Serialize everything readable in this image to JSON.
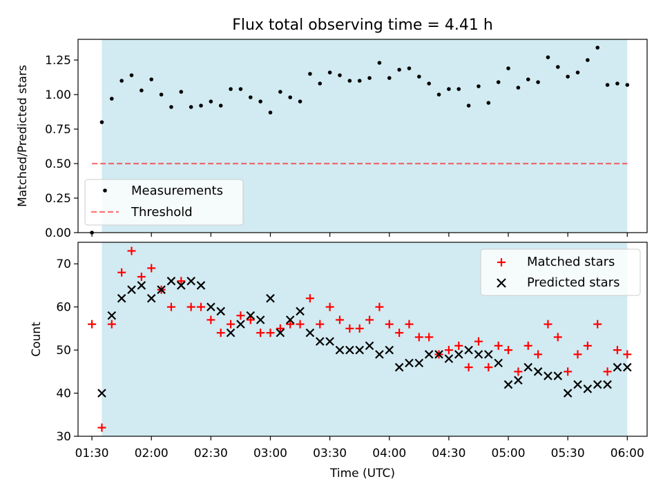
{
  "title": "Flux total observing time = 4.41 h",
  "colors": {
    "shade": "#add8e6",
    "threshold": "#ff0000",
    "matched": "#ff0000",
    "predicted": "#000000",
    "measure": "#000000"
  },
  "chart_data": [
    {
      "type": "scatter",
      "panel": "top",
      "title": "Flux total observing time = 4.41 h",
      "xlabel": "",
      "ylabel": "Matched/Predicted stars",
      "xlim_minutes": [
        83,
        370
      ],
      "ylim": [
        0,
        1.4
      ],
      "yticks": [
        0,
        0.25,
        0.5,
        0.75,
        1.0,
        1.25
      ],
      "ytick_labels": [
        "0.00",
        "0.25",
        "0.50",
        "0.75",
        "1.00",
        "1.25"
      ],
      "shaded_span_minutes": [
        95,
        360
      ],
      "threshold_value": 0.5,
      "threshold_span_minutes": [
        90,
        360
      ],
      "legend": {
        "position": "lower-left",
        "entries": [
          "Measurements",
          "Threshold"
        ]
      },
      "series": [
        {
          "name": "Measurements",
          "x_minutes": [
            90,
            95,
            100,
            105,
            110,
            115,
            120,
            125,
            130,
            135,
            140,
            145,
            150,
            155,
            160,
            165,
            170,
            175,
            180,
            185,
            190,
            195,
            200,
            205,
            210,
            215,
            220,
            225,
            230,
            235,
            240,
            245,
            250,
            255,
            260,
            265,
            270,
            275,
            280,
            285,
            290,
            295,
            300,
            305,
            310,
            315,
            320,
            325,
            330,
            335,
            340,
            345,
            350,
            355,
            360
          ],
          "values": [
            0.0,
            0.8,
            0.97,
            1.1,
            1.14,
            1.03,
            1.11,
            1.0,
            0.91,
            1.02,
            0.91,
            0.92,
            0.95,
            0.92,
            1.04,
            1.04,
            0.98,
            0.95,
            0.87,
            1.02,
            0.98,
            0.95,
            1.15,
            1.08,
            1.16,
            1.14,
            1.1,
            1.1,
            1.12,
            1.23,
            1.12,
            1.18,
            1.19,
            1.13,
            1.08,
            1.0,
            1.04,
            1.04,
            0.92,
            1.06,
            0.94,
            1.09,
            1.19,
            1.05,
            1.11,
            1.09,
            1.27,
            1.2,
            1.13,
            1.16,
            1.25,
            1.34,
            1.07,
            1.08,
            1.07
          ]
        }
      ]
    },
    {
      "type": "scatter",
      "panel": "bottom",
      "xlabel": "Time (UTC)",
      "ylabel": "Count",
      "xlim_minutes": [
        83,
        370
      ],
      "ylim": [
        30,
        75
      ],
      "yticks": [
        30,
        40,
        50,
        60,
        70
      ],
      "ytick_labels": [
        "30",
        "40",
        "50",
        "60",
        "70"
      ],
      "xticks_minutes": [
        90,
        120,
        150,
        180,
        210,
        240,
        270,
        300,
        330,
        360
      ],
      "xtick_labels": [
        "01:30",
        "02:00",
        "02:30",
        "03:00",
        "03:30",
        "04:00",
        "04:30",
        "05:00",
        "05:30",
        "06:00"
      ],
      "shaded_span_minutes": [
        95,
        360
      ],
      "legend": {
        "position": "top-right",
        "entries": [
          "Matched stars",
          "Predicted stars"
        ]
      },
      "series": [
        {
          "name": "Matched stars",
          "marker": "+",
          "x_minutes": [
            90,
            95,
            100,
            105,
            110,
            115,
            120,
            125,
            130,
            135,
            140,
            145,
            150,
            155,
            160,
            165,
            170,
            175,
            180,
            185,
            190,
            195,
            200,
            205,
            210,
            215,
            220,
            225,
            230,
            235,
            240,
            245,
            250,
            255,
            260,
            265,
            270,
            275,
            280,
            285,
            290,
            295,
            300,
            305,
            310,
            315,
            320,
            325,
            330,
            335,
            340,
            345,
            350,
            355,
            360
          ],
          "values": [
            56,
            32,
            56,
            68,
            73,
            67,
            69,
            64,
            60,
            66,
            60,
            60,
            57,
            54,
            56,
            58,
            57,
            54,
            54,
            55,
            56,
            56,
            62,
            56,
            60,
            57,
            55,
            55,
            57,
            60,
            56,
            54,
            56,
            53,
            53,
            49,
            50,
            51,
            46,
            52,
            46,
            51,
            50,
            45,
            51,
            49,
            56,
            53,
            45,
            49,
            51,
            56,
            45,
            50,
            49
          ]
        },
        {
          "name": "Predicted stars",
          "marker": "x",
          "x_minutes": [
            95,
            100,
            105,
            110,
            115,
            120,
            125,
            130,
            135,
            140,
            145,
            150,
            155,
            160,
            165,
            170,
            175,
            180,
            185,
            190,
            195,
            200,
            205,
            210,
            215,
            220,
            225,
            230,
            235,
            240,
            245,
            250,
            255,
            260,
            265,
            270,
            275,
            280,
            285,
            290,
            295,
            300,
            305,
            310,
            315,
            320,
            325,
            330,
            335,
            340,
            345,
            350,
            355,
            360
          ],
          "values": [
            40,
            58,
            62,
            64,
            65,
            62,
            64,
            66,
            65,
            66,
            65,
            60,
            59,
            54,
            56,
            58,
            57,
            62,
            54,
            57,
            59,
            54,
            52,
            52,
            50,
            50,
            50,
            51,
            49,
            50,
            46,
            47,
            47,
            49,
            49,
            48,
            49,
            50,
            49,
            49,
            47,
            42,
            43,
            46,
            45,
            44,
            44,
            40,
            42,
            41,
            42,
            42,
            46,
            46
          ]
        }
      ]
    }
  ]
}
